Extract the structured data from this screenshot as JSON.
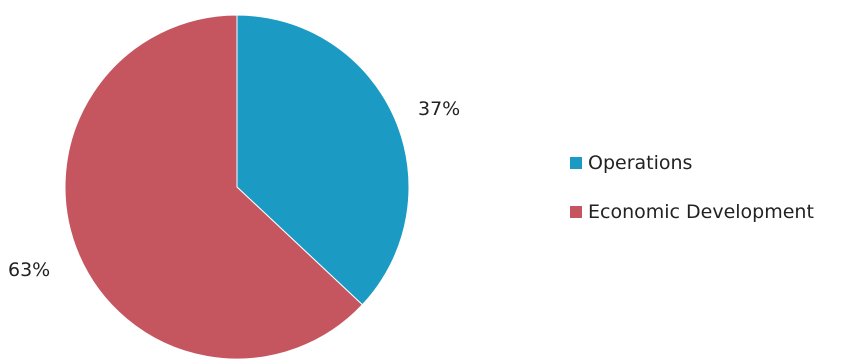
{
  "chart_data": {
    "type": "pie",
    "slices": [
      {
        "label": "Operations",
        "value": 37,
        "display": "37%",
        "color": "#1b9ac4"
      },
      {
        "label": "Economic Development",
        "value": 63,
        "display": "63%",
        "color": "#c55660"
      }
    ],
    "start_angle_deg": 0,
    "direction": "clockwise",
    "legend_placement": "right"
  }
}
